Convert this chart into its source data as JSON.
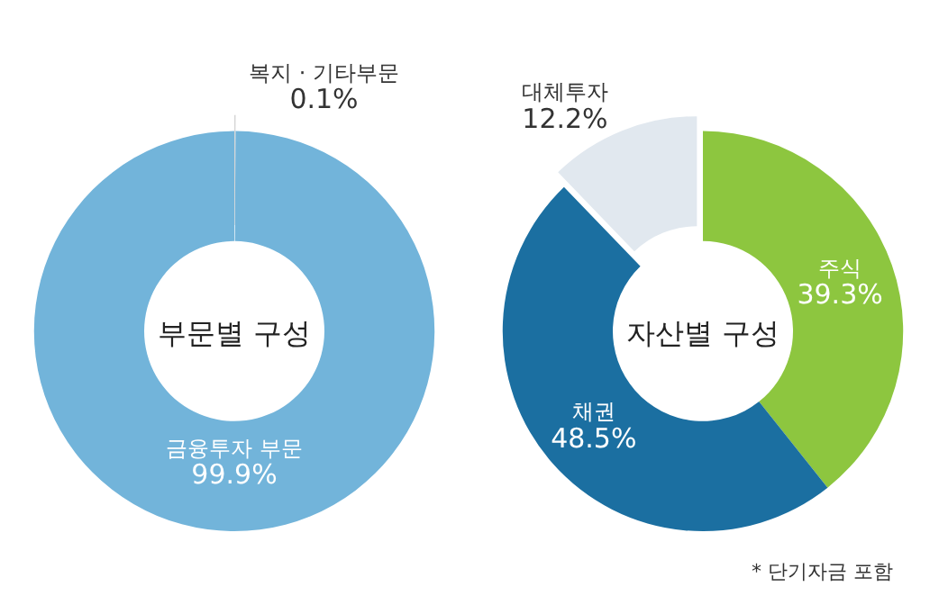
{
  "chart_data": [
    {
      "type": "donut",
      "title": "부문별 구성",
      "categories": [
        "복지 · 기타부문",
        "금융투자 부문"
      ],
      "values": [
        0.1,
        99.9
      ],
      "colors": [
        "#d3d3d3",
        "#72b4da"
      ],
      "value_labels": [
        "0.1%",
        "99.9%"
      ]
    },
    {
      "type": "donut",
      "title": "자산별 구성",
      "categories": [
        "주식",
        "채권",
        "대체투자"
      ],
      "values": [
        39.3,
        48.5,
        12.2
      ],
      "colors": [
        "#8dc63f",
        "#1b6fa1",
        "#e1e8ef"
      ],
      "value_labels": [
        "39.3%",
        "48.5%",
        "12.2%"
      ],
      "annotations": [
        "* 단기자금 포함"
      ]
    }
  ]
}
